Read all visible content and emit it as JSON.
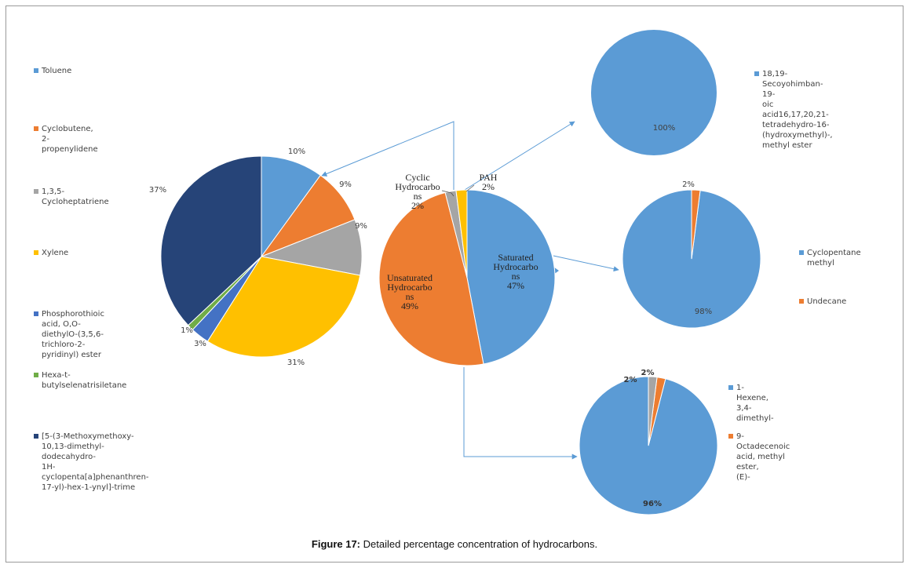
{
  "caption": {
    "label": "Figure 17:",
    "text": "Detailed percentage concentration of hydrocarbons."
  },
  "chart_data": [
    {
      "id": "main",
      "type": "pie",
      "slices": [
        {
          "label": "Saturated Hydrocarbons",
          "lines": [
            "Saturated",
            "Hydrocarbo",
            "ns",
            "47%"
          ],
          "value": 47,
          "color": "#5b9bd5"
        },
        {
          "label": "Unsaturated Hydrocarbons",
          "lines": [
            "Unsaturated",
            "Hydrocarbo",
            "ns",
            "49%"
          ],
          "value": 49,
          "color": "#ed7d31"
        },
        {
          "label": "Cyclic Hydrocarbons",
          "lines": [
            "Cyclic",
            "Hydrocarbo",
            "ns",
            "2%"
          ],
          "value": 2,
          "color": "#a5a5a5"
        },
        {
          "label": "PAH",
          "lines": [
            "PAH",
            "2%"
          ],
          "value": 2,
          "color": "#ffc000"
        }
      ]
    },
    {
      "id": "unsaturated",
      "type": "pie",
      "slices": [
        {
          "label": "Toluene",
          "value": 10,
          "display": "10%",
          "color": "#5b9bd5"
        },
        {
          "label": "Cyclobutene, 2-propenylidene",
          "value": 9,
          "display": "9%",
          "color": "#ed7d31"
        },
        {
          "label": "1,3,5-Cycloheptatriene",
          "value": 9,
          "display": "9%",
          "color": "#a5a5a5"
        },
        {
          "label": "Xylene",
          "value": 31,
          "display": "31%",
          "color": "#ffc000"
        },
        {
          "label": "Phosphorothioic acid, O,O-diethylO-(3,5,6-trichloro-2-pyridinyl) ester",
          "value": 3,
          "display": "3%",
          "color": "#4472c4"
        },
        {
          "label": "Hexa-t-butylselenatrisiletane",
          "value": 1,
          "display": "1%",
          "color": "#70ad47"
        },
        {
          "label": "[5-(3-Methoxymethoxy-10,13-dimethyl-dodecahydro-1H-cyclopenta[a]phenanthren-17-yl)-hex-1-ynyl]-trime",
          "value": 37,
          "display": "37%",
          "color": "#264478"
        }
      ],
      "legend": [
        [
          "Toluene"
        ],
        [
          "Cyclobutene, 2-",
          "propenylidene"
        ],
        [
          "1,3,5-Cycloheptatriene"
        ],
        [
          "Xylene"
        ],
        [
          "Phosphorothioic acid, O,O-",
          "diethylO-(3,5,6-trichloro-2-",
          "pyridinyl) ester"
        ],
        [
          "Hexa-t-butylselenatrisiletane"
        ],
        [
          "[5-(3-Methoxymethoxy-",
          "10,13-dimethyl-dodecahydro-",
          "1H-",
          "cyclopenta[a]phenanthren-",
          "17-yl)-hex-1-ynyl]-trime"
        ]
      ]
    },
    {
      "id": "pah",
      "type": "pie",
      "slices": [
        {
          "label": "18,19-Secoyohimban-19-oic acid16,17,20,21-tetradehydro-16-(hydroxymethyl)-, methyl ester",
          "value": 100,
          "display": "100%",
          "color": "#5b9bd5"
        }
      ],
      "legend": [
        [
          "18,19-",
          "Secoyohimban-19-",
          "oic acid16,17,20,21-",
          "tetradehydro-16-",
          "(hydroxymethyl)-,",
          "methyl ester"
        ]
      ]
    },
    {
      "id": "saturated",
      "type": "pie",
      "slices": [
        {
          "label": "Cyclopentane methyl",
          "value": 98,
          "display": "98%",
          "color": "#5b9bd5"
        },
        {
          "label": "Undecane",
          "value": 2,
          "display": "2%",
          "color": "#ed7d31"
        }
      ],
      "legend": [
        [
          "Cyclopentane",
          "methyl"
        ],
        [
          "Undecane"
        ]
      ]
    },
    {
      "id": "cyclic",
      "type": "pie",
      "slices": [
        {
          "label": "1-Hexene, 3,4-dimethyl-",
          "value": 96,
          "display": "96%",
          "color": "#5b9bd5"
        },
        {
          "label": "9-Octadecenoic acid, methyl ester, (E)-",
          "value": 2,
          "display": "2%",
          "color": "#ed7d31"
        },
        {
          "label": "",
          "value": 2,
          "display": "2%",
          "color": "#a5a5a5"
        }
      ],
      "legend": [
        [
          "1-Hexene, 3,4-",
          "dimethyl-"
        ],
        [
          "9-Octadecenoic",
          "acid, methyl ester,",
          "(E)-"
        ]
      ]
    }
  ]
}
